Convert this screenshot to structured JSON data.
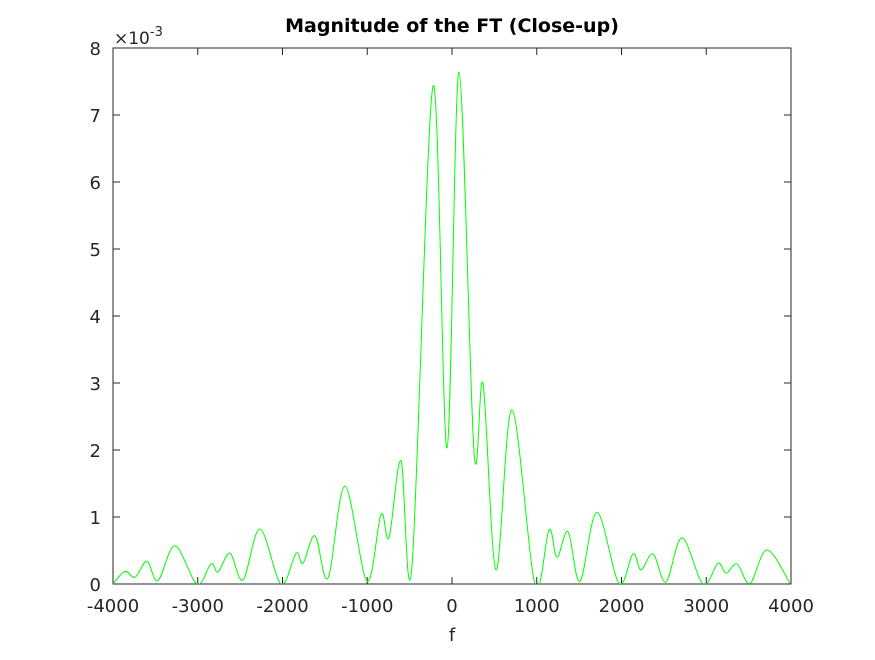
{
  "chart_data": {
    "type": "line",
    "title": "Magnitude of the FT (Close-up)",
    "x_label": "f",
    "y_multiplier": {
      "base": "×10",
      "exponent": "-3"
    },
    "xlim": [
      -4000,
      4000
    ],
    "ylim": [
      0,
      8
    ],
    "xticks": [
      -4000,
      -3000,
      -2000,
      -1000,
      0,
      1000,
      2000,
      3000,
      4000
    ],
    "yticks": [
      0,
      1,
      2,
      3,
      4,
      5,
      6,
      7,
      8
    ],
    "grid": false,
    "series": [
      {
        "color": "#00ff00",
        "x": [
          -4000,
          -3858,
          -3740,
          -3600,
          -3470,
          -3268,
          -3009,
          -2844,
          -2760,
          -2620,
          -2466,
          -2266,
          -2018,
          -1840,
          -1758,
          -1616,
          -1463,
          -1263,
          -1003,
          -838,
          -743,
          -602,
          -472,
          -224,
          -59,
          83,
          260,
          366,
          519,
          708,
          979,
          1145,
          1239,
          1369,
          1510,
          1711,
          1970,
          2136,
          2230,
          2372,
          2525,
          2714,
          2962,
          3139,
          3233,
          3363,
          3516,
          3717,
          3988
        ],
        "values": [
          0,
          0.19,
          0.1,
          0.34,
          0.05,
          0.57,
          0,
          0.3,
          0.18,
          0.46,
          0.06,
          0.82,
          0,
          0.46,
          0.31,
          0.72,
          0.09,
          1.46,
          0.04,
          1.04,
          0.69,
          1.84,
          0.27,
          7.43,
          2.03,
          7.64,
          1.96,
          2.99,
          0.21,
          2.6,
          0,
          0.81,
          0.4,
          0.78,
          0.04,
          1.07,
          0.01,
          0.45,
          0.21,
          0.45,
          0.03,
          0.69,
          0,
          0.31,
          0.16,
          0.3,
          0.01,
          0.51,
          0.01
        ]
      }
    ]
  }
}
